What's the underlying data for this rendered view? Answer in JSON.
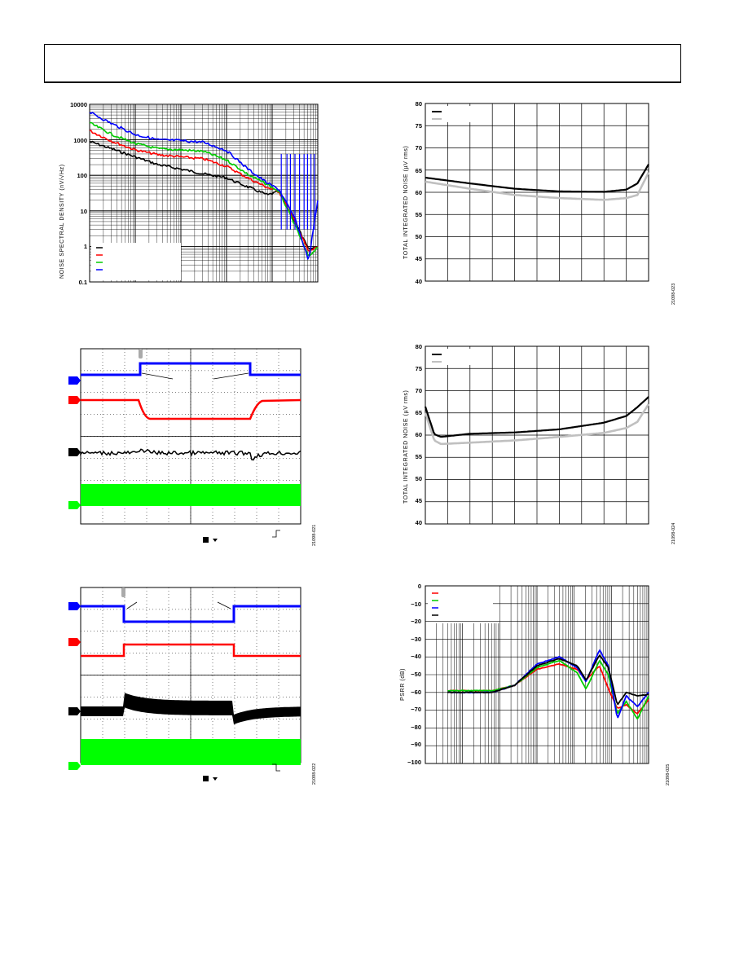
{
  "page": {
    "header_text": ""
  },
  "charts": {
    "noise_spectral_density": {
      "ylabel": "NOISE SPECTRAL DENSITY (nV/√Hz)",
      "yticks": [
        "10000",
        "1000",
        "100",
        "10",
        "1",
        "0.1"
      ],
      "colors": {
        "black": "#000000",
        "red": "#ff0000",
        "green": "#00cc00",
        "blue": "#0000ff"
      }
    },
    "total_noise_1": {
      "ylabel": "TOTAL INTEGRATED NOISE (µV rms)",
      "yticks": [
        "80",
        "75",
        "70",
        "65",
        "60",
        "55",
        "50",
        "45",
        "40"
      ],
      "fig_id": "21098-023"
    },
    "total_noise_2": {
      "ylabel": "TOTAL INTEGRATED NOISE (µV rms)",
      "yticks": [
        "80",
        "75",
        "70",
        "65",
        "60",
        "55",
        "50",
        "45",
        "40"
      ],
      "fig_id": "21098-024"
    },
    "scope_1": {
      "fig_id": "21098-021"
    },
    "scope_2": {
      "fig_id": "21098-022"
    },
    "psrr": {
      "ylabel": "PSRR (dB)",
      "yticks": [
        "0",
        "−10",
        "−20",
        "−30",
        "−40",
        "−50",
        "−60",
        "−70",
        "−80",
        "−90",
        "−100"
      ],
      "fig_id": "21098-025"
    }
  },
  "chart_data": [
    {
      "type": "line",
      "title": "",
      "ylabel": "NOISE SPECTRAL DENSITY (nV/√Hz)",
      "yscale": "log",
      "ylim": [
        0.1,
        10000
      ],
      "grid": true,
      "legend_placement": "bottom-left",
      "series": [
        {
          "color": "#000000",
          "points": [
            [
              0,
              900
            ],
            [
              0.1,
              550
            ],
            [
              0.2,
              330
            ],
            [
              0.3,
              200
            ],
            [
              0.4,
              150
            ],
            [
              0.5,
              110
            ],
            [
              0.6,
              85
            ],
            [
              0.7,
              45
            ],
            [
              0.78,
              28
            ],
            [
              0.83,
              35
            ],
            [
              0.9,
              5
            ],
            [
              0.96,
              0.8
            ],
            [
              1.0,
              1.0
            ]
          ]
        },
        {
          "color": "#ff0000",
          "points": [
            [
              0,
              1800
            ],
            [
              0.1,
              900
            ],
            [
              0.2,
              520
            ],
            [
              0.3,
              380
            ],
            [
              0.4,
              330
            ],
            [
              0.5,
              290
            ],
            [
              0.6,
              180
            ],
            [
              0.7,
              80
            ],
            [
              0.78,
              45
            ],
            [
              0.83,
              35
            ],
            [
              0.9,
              5
            ],
            [
              0.96,
              0.7
            ],
            [
              1.0,
              1.0
            ]
          ]
        },
        {
          "color": "#00cc00",
          "points": [
            [
              0,
              3000
            ],
            [
              0.1,
              1400
            ],
            [
              0.2,
              780
            ],
            [
              0.3,
              560
            ],
            [
              0.4,
              520
            ],
            [
              0.5,
              470
            ],
            [
              0.6,
              270
            ],
            [
              0.7,
              100
            ],
            [
              0.78,
              55
            ],
            [
              0.83,
              35
            ],
            [
              0.9,
              4
            ],
            [
              0.96,
              0.5
            ],
            [
              1.0,
              1.0
            ]
          ]
        },
        {
          "color": "#0000ff",
          "points": [
            [
              0,
              6000
            ],
            [
              0.1,
              2800
            ],
            [
              0.2,
              1400
            ],
            [
              0.3,
              1000
            ],
            [
              0.4,
              950
            ],
            [
              0.5,
              850
            ],
            [
              0.6,
              500
            ],
            [
              0.7,
              140
            ],
            [
              0.78,
              60
            ],
            [
              0.83,
              40
            ],
            [
              0.9,
              6
            ],
            [
              0.96,
              0.4
            ],
            [
              1.0,
              20
            ]
          ]
        }
      ]
    },
    {
      "type": "line",
      "title": "",
      "ylabel": "TOTAL INTEGRATED NOISE (µV rms)",
      "ylim": [
        40,
        80
      ],
      "grid": true,
      "legend_placement": "top-left",
      "series": [
        {
          "color": "#000000",
          "points": [
            [
              0,
              63.3
            ],
            [
              0.2,
              62
            ],
            [
              0.4,
              60.8
            ],
            [
              0.6,
              60.2
            ],
            [
              0.8,
              60.1
            ],
            [
              0.9,
              60.6
            ],
            [
              0.95,
              62
            ],
            [
              1.0,
              66.3
            ]
          ]
        },
        {
          "color": "#c0c0c0",
          "points": [
            [
              0,
              62.4
            ],
            [
              0.2,
              60.8
            ],
            [
              0.4,
              59.4
            ],
            [
              0.6,
              58.7
            ],
            [
              0.8,
              58.3
            ],
            [
              0.9,
              58.7
            ],
            [
              0.95,
              59.4
            ],
            [
              1.0,
              64.5
            ]
          ]
        }
      ]
    },
    {
      "type": "line",
      "title": "",
      "ylabel": "TOTAL INTEGRATED NOISE (µV rms)",
      "ylim": [
        40,
        80
      ],
      "grid": true,
      "legend_placement": "top-left",
      "series": [
        {
          "color": "#000000",
          "points": [
            [
              0,
              66.4
            ],
            [
              0.04,
              60.2
            ],
            [
              0.07,
              59.6
            ],
            [
              0.2,
              60.3
            ],
            [
              0.4,
              60.6
            ],
            [
              0.6,
              61.3
            ],
            [
              0.8,
              62.8
            ],
            [
              0.9,
              64.3
            ],
            [
              0.95,
              66.3
            ],
            [
              1.0,
              68.6
            ]
          ]
        },
        {
          "color": "#c0c0c0",
          "points": [
            [
              0,
              65
            ],
            [
              0.04,
              58.8
            ],
            [
              0.07,
              58
            ],
            [
              0.2,
              58.3
            ],
            [
              0.4,
              58.8
            ],
            [
              0.6,
              59.6
            ],
            [
              0.8,
              60.5
            ],
            [
              0.9,
              61.6
            ],
            [
              0.95,
              63
            ],
            [
              1.0,
              67
            ]
          ]
        }
      ]
    },
    {
      "type": "line",
      "title": "",
      "ylabel": "PSRR (dB)",
      "ylim": [
        -100,
        0
      ],
      "grid": true,
      "legend_placement": "top-left",
      "series": [
        {
          "color": "#ff0000",
          "points": [
            [
              0.1,
              -59
            ],
            [
              0.3,
              -59
            ],
            [
              0.4,
              -56
            ],
            [
              0.5,
              -47
            ],
            [
              0.6,
              -44
            ],
            [
              0.68,
              -47
            ],
            [
              0.72,
              -53
            ],
            [
              0.78,
              -45
            ],
            [
              0.82,
              -58
            ],
            [
              0.86,
              -69
            ],
            [
              0.9,
              -67
            ],
            [
              0.95,
              -72
            ],
            [
              1.0,
              -64
            ]
          ]
        },
        {
          "color": "#00cc00",
          "points": [
            [
              0.1,
              -59
            ],
            [
              0.3,
              -59
            ],
            [
              0.4,
              -56
            ],
            [
              0.5,
              -46
            ],
            [
              0.6,
              -42
            ],
            [
              0.68,
              -49
            ],
            [
              0.72,
              -58
            ],
            [
              0.78,
              -42
            ],
            [
              0.82,
              -50
            ],
            [
              0.86,
              -72
            ],
            [
              0.9,
              -65
            ],
            [
              0.95,
              -75
            ],
            [
              1.0,
              -62
            ]
          ]
        },
        {
          "color": "#0000ff",
          "points": [
            [
              0.1,
              -60
            ],
            [
              0.3,
              -60
            ],
            [
              0.4,
              -56
            ],
            [
              0.5,
              -44
            ],
            [
              0.6,
              -40
            ],
            [
              0.68,
              -46
            ],
            [
              0.72,
              -54
            ],
            [
              0.78,
              -36
            ],
            [
              0.82,
              -45
            ],
            [
              0.86,
              -75
            ],
            [
              0.9,
              -62
            ],
            [
              0.95,
              -68
            ],
            [
              1.0,
              -60
            ]
          ]
        },
        {
          "color": "#000000",
          "points": [
            [
              0.1,
              -60
            ],
            [
              0.3,
              -60
            ],
            [
              0.4,
              -56
            ],
            [
              0.5,
              -45
            ],
            [
              0.6,
              -41
            ],
            [
              0.68,
              -45
            ],
            [
              0.72,
              -53
            ],
            [
              0.78,
              -39
            ],
            [
              0.82,
              -46
            ],
            [
              0.86,
              -67
            ],
            [
              0.9,
              -60
            ],
            [
              0.95,
              -62
            ],
            [
              1.0,
              -61
            ]
          ]
        }
      ]
    }
  ]
}
